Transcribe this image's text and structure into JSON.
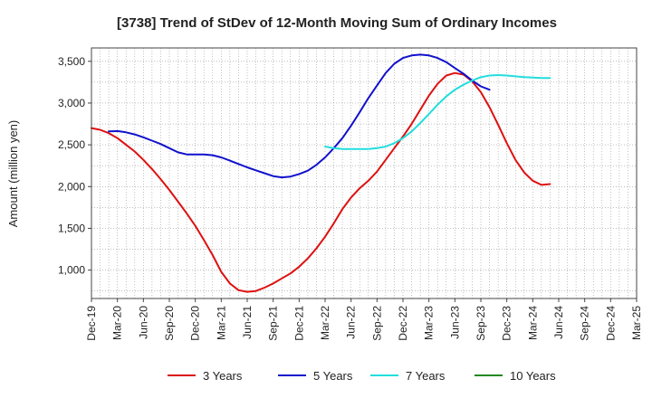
{
  "chart_data": {
    "type": "line",
    "title": "[3738]  Trend of StDev of 12-Month Moving Sum of Ordinary Incomes",
    "xlabel": "",
    "ylabel": "Amount (million yen)",
    "ylim": [
      660,
      3660
    ],
    "y_ticks": [
      1000,
      1500,
      2000,
      2500,
      3000,
      3500
    ],
    "y_tick_labels": [
      "1,000",
      "1,500",
      "2,000",
      "2,500",
      "3,000",
      "3,500"
    ],
    "x_tick_labels": [
      "Dec-19",
      "Mar-20",
      "Jun-20",
      "Sep-20",
      "Dec-20",
      "Mar-21",
      "Jun-21",
      "Sep-21",
      "Dec-21",
      "Mar-22",
      "Jun-22",
      "Sep-22",
      "Dec-22",
      "Mar-23",
      "Jun-23",
      "Sep-23",
      "Dec-23",
      "Mar-24",
      "Jun-24",
      "Sep-24",
      "Dec-24",
      "Mar-25"
    ],
    "grid": true,
    "legend_position": "bottom",
    "series": [
      {
        "name": "3 Years",
        "color": "#dd1111",
        "start_index": 0,
        "values": [
          2700,
          2680,
          2640,
          2580,
          2500,
          2420,
          2320,
          2210,
          2090,
          1960,
          1820,
          1680,
          1530,
          1360,
          1180,
          980,
          840,
          760,
          740,
          750,
          790,
          840,
          900,
          960,
          1040,
          1140,
          1260,
          1400,
          1560,
          1730,
          1870,
          1980,
          2070,
          2180,
          2320,
          2460,
          2600,
          2750,
          2920,
          3090,
          3230,
          3330,
          3360,
          3340,
          3260,
          3130,
          2950,
          2740,
          2520,
          2320,
          2170,
          2070,
          2020,
          2030
        ]
      },
      {
        "name": "5 Years",
        "color": "#1111cc",
        "start_index": 2,
        "values": [
          2660,
          2665,
          2650,
          2625,
          2590,
          2550,
          2510,
          2460,
          2410,
          2385,
          2385,
          2385,
          2375,
          2350,
          2310,
          2270,
          2230,
          2195,
          2160,
          2125,
          2110,
          2120,
          2150,
          2190,
          2260,
          2350,
          2460,
          2580,
          2730,
          2890,
          3060,
          3210,
          3360,
          3470,
          3540,
          3570,
          3580,
          3570,
          3540,
          3490,
          3420,
          3350,
          3270,
          3200,
          3160
        ]
      },
      {
        "name": "7 Years",
        "color": "#22dddd",
        "start_index": 27,
        "values": [
          2480,
          2460,
          2450,
          2450,
          2450,
          2450,
          2460,
          2480,
          2520,
          2580,
          2660,
          2760,
          2870,
          2980,
          3080,
          3160,
          3220,
          3270,
          3310,
          3330,
          3335,
          3330,
          3320,
          3310,
          3305,
          3300,
          3300
        ]
      },
      {
        "name": "10 Years",
        "color": "#228822",
        "start_index": 0,
        "values": []
      }
    ]
  }
}
